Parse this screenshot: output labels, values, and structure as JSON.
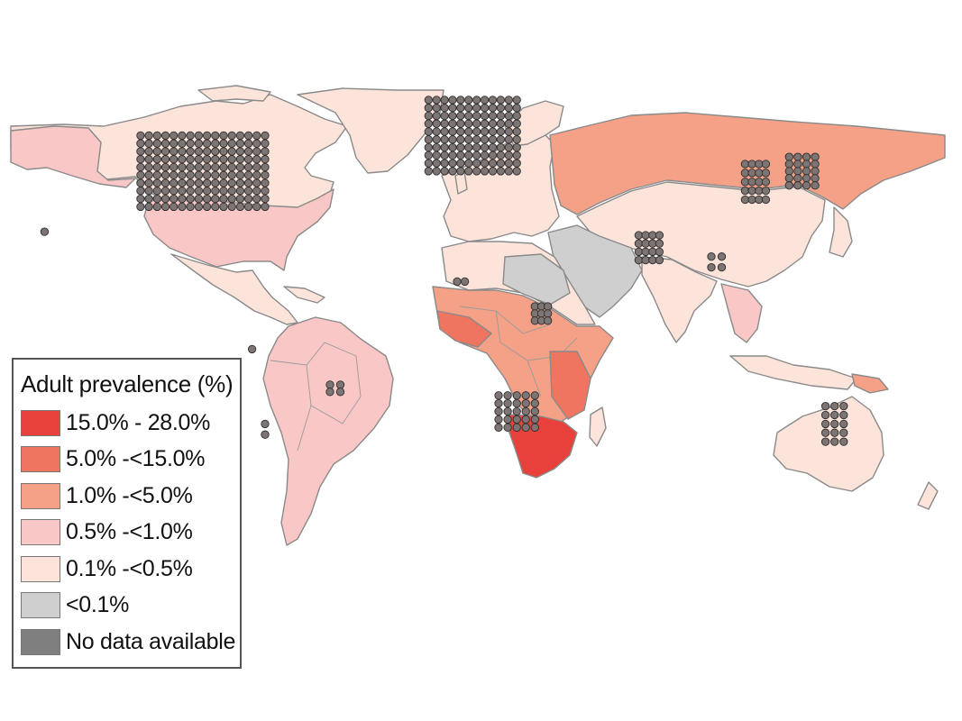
{
  "legend": {
    "title": "Adult prevalence (%)",
    "items": [
      {
        "label": "15.0% - 28.0%",
        "color": "#e8413b"
      },
      {
        "label": "5.0% -<15.0%",
        "color": "#ef7560"
      },
      {
        "label": "1.0% -<5.0%",
        "color": "#f4a187"
      },
      {
        "label": "0.5% -<1.0%",
        "color": "#f8c7c6"
      },
      {
        "label": "0.1% -<0.5%",
        "color": "#fde4da"
      },
      {
        "label": "<0.1%",
        "color": "#cfcfcf"
      },
      {
        "label": "No data available",
        "color": "#7f7f7f"
      }
    ]
  },
  "map": {
    "regions": [
      {
        "name": "north-america",
        "category": "0.1% -<0.5%"
      },
      {
        "name": "alaska",
        "category": "0.5% -<1.0%"
      },
      {
        "name": "greenland",
        "category": "0.1% -<0.5%"
      },
      {
        "name": "united-states",
        "category": "0.5% -<1.0%"
      },
      {
        "name": "mexico",
        "category": "0.1% -<0.5%"
      },
      {
        "name": "south-america",
        "category": "0.5% -<1.0%"
      },
      {
        "name": "europe",
        "category": "0.1% -<0.5%"
      },
      {
        "name": "russia",
        "category": "1.0% -<5.0%"
      },
      {
        "name": "asia",
        "category": "0.1% -<0.5%"
      },
      {
        "name": "middle-east",
        "category": "<0.1%"
      },
      {
        "name": "north-africa",
        "category": "0.1% -<0.5%"
      },
      {
        "name": "central-africa",
        "category": "1.0% -<5.0%"
      },
      {
        "name": "southern-africa",
        "category": "15.0% - 28.0%"
      },
      {
        "name": "south-asia",
        "category": "0.1% -<0.5%"
      },
      {
        "name": "australia",
        "category": "0.1% -<0.5%"
      }
    ],
    "site_clusters": [
      {
        "name": "usa-sites",
        "lon": [
          -120,
          -72
        ],
        "lat": [
          28,
          48
        ]
      },
      {
        "name": "europe-sites",
        "lon": [
          -9,
          25
        ],
        "lat": [
          38,
          58
        ]
      },
      {
        "name": "southern-africa-sites",
        "lon": [
          18,
          32
        ],
        "lat": [
          -34,
          -25
        ]
      },
      {
        "name": "east-africa-sites",
        "lon": [
          32,
          37
        ],
        "lat": [
          -4,
          0
        ]
      },
      {
        "name": "west-africa-sites",
        "lon": [
          2,
          5
        ],
        "lat": [
          6,
          7
        ]
      },
      {
        "name": "india-sites",
        "lon": [
          72,
          80
        ],
        "lat": [
          13,
          20
        ]
      },
      {
        "name": "southeast-asia-sites",
        "lon": [
          100,
          104
        ],
        "lat": [
          11,
          14
        ]
      },
      {
        "name": "china-sites",
        "lon": [
          113,
          121
        ],
        "lat": [
          30,
          40
        ]
      },
      {
        "name": "japan-sites",
        "lon": [
          130,
          140
        ],
        "lat": [
          34,
          42
        ]
      },
      {
        "name": "brazil-sites",
        "lon": [
          -47,
          -43
        ],
        "lat": [
          -24,
          -22
        ]
      },
      {
        "name": "chile-sites",
        "lon": [
          -72,
          -71
        ],
        "lat": [
          -36,
          -33
        ]
      },
      {
        "name": "peru-sites",
        "lon": [
          -77,
          -77
        ],
        "lat": [
          -12,
          -12
        ]
      },
      {
        "name": "australia-sites",
        "lon": [
          144,
          151
        ],
        "lat": [
          -38,
          -28
        ]
      },
      {
        "name": "hawaii-sites",
        "lon": [
          -157,
          -157
        ],
        "lat": [
          21,
          21
        ]
      }
    ]
  }
}
